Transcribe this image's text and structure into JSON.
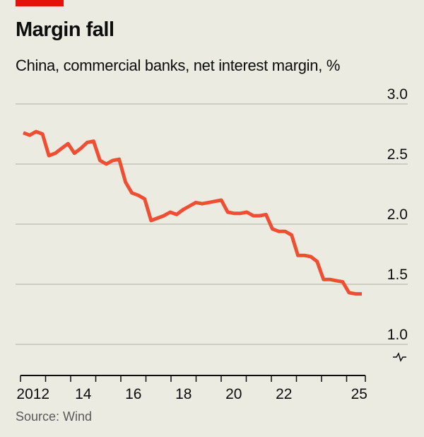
{
  "title": "Margin fall",
  "subtitle": "China, commercial banks, net interest margin, %",
  "source": "Source: Wind",
  "colors": {
    "line": "#f04e33",
    "brand_bar": "#e3120b",
    "background": "#ecebe1",
    "grid": "#c4c3b8"
  },
  "chart_data": {
    "type": "line",
    "title": "Margin fall",
    "subtitle": "China, commercial banks, net interest margin, %",
    "xlabel": "",
    "ylabel": "",
    "frequency": "quarterly",
    "x_start": "2012 Q1",
    "ylim": [
      1.0,
      3.0
    ],
    "y_ticks": [
      "3.0",
      "2.5",
      "2.0",
      "1.5",
      "1.0"
    ],
    "y_axis_break": true,
    "x_tick_labels": [
      {
        "label": "2012",
        "year": 2012
      },
      {
        "label": "14",
        "year": 2014
      },
      {
        "label": "16",
        "year": 2016
      },
      {
        "label": "18",
        "year": 2018
      },
      {
        "label": "20",
        "year": 2020
      },
      {
        "label": "22",
        "year": 2022
      },
      {
        "label": "25",
        "year": 2025
      }
    ],
    "grid": true,
    "series": [
      {
        "values": [
          2.76,
          2.74,
          2.77,
          2.75,
          2.57,
          2.59,
          2.63,
          2.67,
          2.59,
          2.63,
          2.68,
          2.69,
          2.53,
          2.5,
          2.53,
          2.54,
          2.35,
          2.26,
          2.24,
          2.21,
          2.03,
          2.05,
          2.07,
          2.1,
          2.08,
          2.12,
          2.15,
          2.18,
          2.17,
          2.18,
          2.19,
          2.2,
          2.1,
          2.09,
          2.09,
          2.1,
          2.07,
          2.07,
          2.08,
          1.96,
          1.94,
          1.94,
          1.91,
          1.74,
          1.74,
          1.73,
          1.69,
          1.54,
          1.54,
          1.53,
          1.52,
          1.43,
          1.42,
          1.42
        ]
      }
    ]
  }
}
